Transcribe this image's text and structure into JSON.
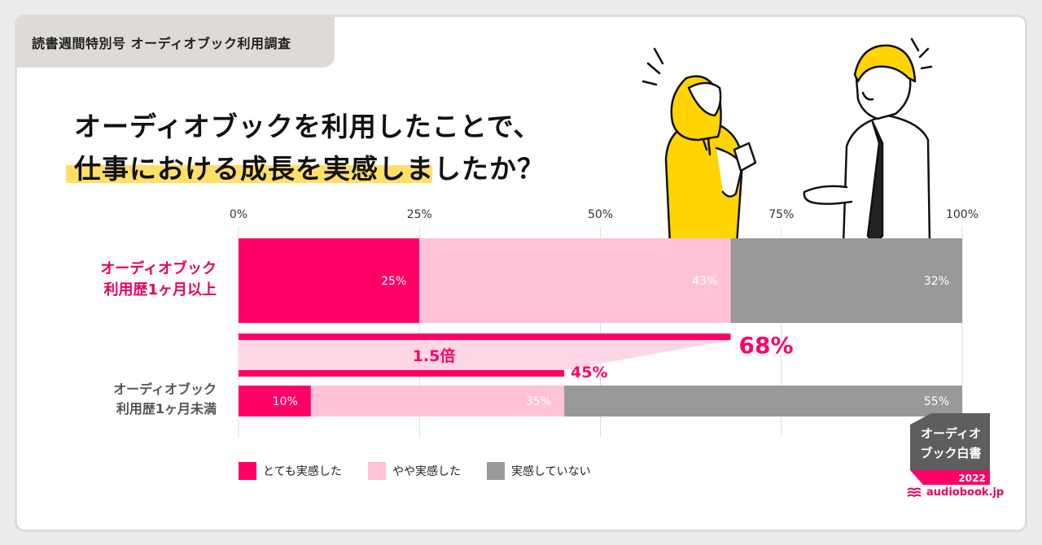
{
  "header": {
    "tag": "読書週間特別号 オーディオブック利用調査",
    "title_line1": "オーディオブックを利用したことで、",
    "title_line2": "仕事における成長を実感しましたか？"
  },
  "chart_data": {
    "type": "bar",
    "orientation": "horizontal",
    "stacked": true,
    "x_ticks": [
      "0%",
      "25%",
      "50%",
      "75%",
      "100%"
    ],
    "xlim": [
      0,
      100
    ],
    "categories": [
      "オーディオブック\n利用歴1ヶ月以上",
      "オーディオブック\n利用歴1ヶ月未満"
    ],
    "series": [
      {
        "name": "とても実感した",
        "values": [
          25,
          10
        ],
        "labels": [
          "25%",
          "10%"
        ]
      },
      {
        "name": "やや実感した",
        "values": [
          43,
          35
        ],
        "labels": [
          "43%",
          "35%"
        ]
      },
      {
        "name": "実感していない",
        "values": [
          32,
          55
        ],
        "labels": [
          "32%",
          "55%"
        ]
      }
    ],
    "comparison": {
      "upper_total": 68,
      "upper_label": "68%",
      "lower_total": 45,
      "lower_label": "45%",
      "ratio_label": "1.5倍"
    },
    "legend_placement": "bottom-left",
    "grid": true
  },
  "category_labels": {
    "upper_line1": "オーディオブック",
    "upper_line2": "利用歴1ヶ月以上",
    "lower_line1": "オーディオブック",
    "lower_line2": "利用歴1ヶ月未満"
  },
  "legend": [
    "とても実感した",
    "やや実感した",
    "実感していない"
  ],
  "badge": {
    "line1": "オーディオ",
    "line2": "ブック白書",
    "year": "2022"
  },
  "brand": "audiobook.jp",
  "colors": {
    "strong": "#ff0066",
    "moderate": "#ffc2d9",
    "none": "#999999",
    "label_upper": "#e6005c",
    "label_lower": "#555555",
    "highlight": "#ffe066",
    "badge_dark": "#5e5e5e"
  }
}
